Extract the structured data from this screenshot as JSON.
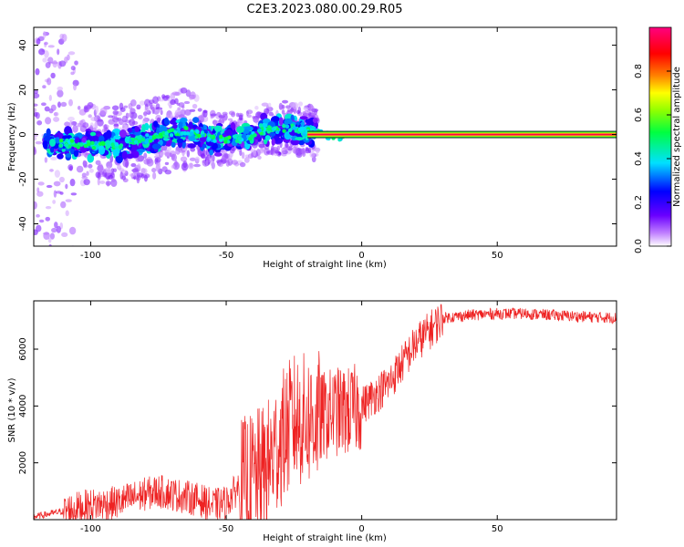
{
  "title": "C2E3.2023.080.00.29.R05",
  "chart_data": [
    {
      "type": "heatmap",
      "xlabel": "Height of straight line (km)",
      "ylabel": "Frequency (Hz)",
      "xlim": [
        -121,
        94
      ],
      "ylim": [
        -50,
        48
      ],
      "xticks": [
        -100,
        -50,
        0,
        50
      ],
      "yticks": [
        -40,
        -20,
        0,
        20,
        40
      ],
      "grid": false,
      "colorbar": {
        "label": "Normalized spectral amplitude",
        "range": [
          0,
          1
        ],
        "ticks": [
          0.0,
          0.2,
          0.4,
          0.6,
          0.8
        ]
      },
      "summary": {
        "doppler_trace": [
          {
            "x": -110,
            "y": -4
          },
          {
            "x": -90,
            "y": -5
          },
          {
            "x": -80,
            "y": -2
          },
          {
            "x": -65,
            "y": 2
          },
          {
            "x": -55,
            "y": -2
          },
          {
            "x": -45,
            "y": -2
          },
          {
            "x": -35,
            "y": 2
          },
          {
            "x": -25,
            "y": 3
          },
          {
            "x": -15,
            "y": 0
          },
          {
            "x": -8,
            "y": -1
          },
          {
            "x": 0,
            "y": 0
          },
          {
            "x": 94,
            "y": 0
          }
        ],
        "steady_line": {
          "x_start": -20,
          "x_end": 94,
          "y": 0,
          "amplitude": 0.95
        }
      }
    },
    {
      "type": "line",
      "xlabel": "Height of straight line (km)",
      "ylabel": "SNR (10 * v/v)",
      "xlim": [
        -121,
        94
      ],
      "ylim": [
        0,
        7700
      ],
      "xticks": [
        -100,
        -50,
        0,
        50
      ],
      "yticks": [
        2000,
        4000,
        6000
      ],
      "grid": false,
      "series": [
        {
          "color": "#ee2222",
          "x": [
            -121,
            -110,
            -100,
            -90,
            -80,
            -75,
            -70,
            -65,
            -60,
            -55,
            -50,
            -45,
            -40,
            -35,
            -30,
            -25,
            -20,
            -15,
            -10,
            -5,
            0,
            10,
            20,
            30,
            40,
            50,
            60,
            70,
            80,
            94
          ],
          "y": [
            100,
            300,
            500,
            600,
            900,
            1000,
            900,
            800,
            700,
            500,
            600,
            1200,
            1400,
            1800,
            2800,
            3500,
            3500,
            3600,
            3800,
            3800,
            4000,
            4800,
            6200,
            7100,
            7200,
            7250,
            7250,
            7200,
            7150,
            7100
          ]
        }
      ]
    }
  ]
}
